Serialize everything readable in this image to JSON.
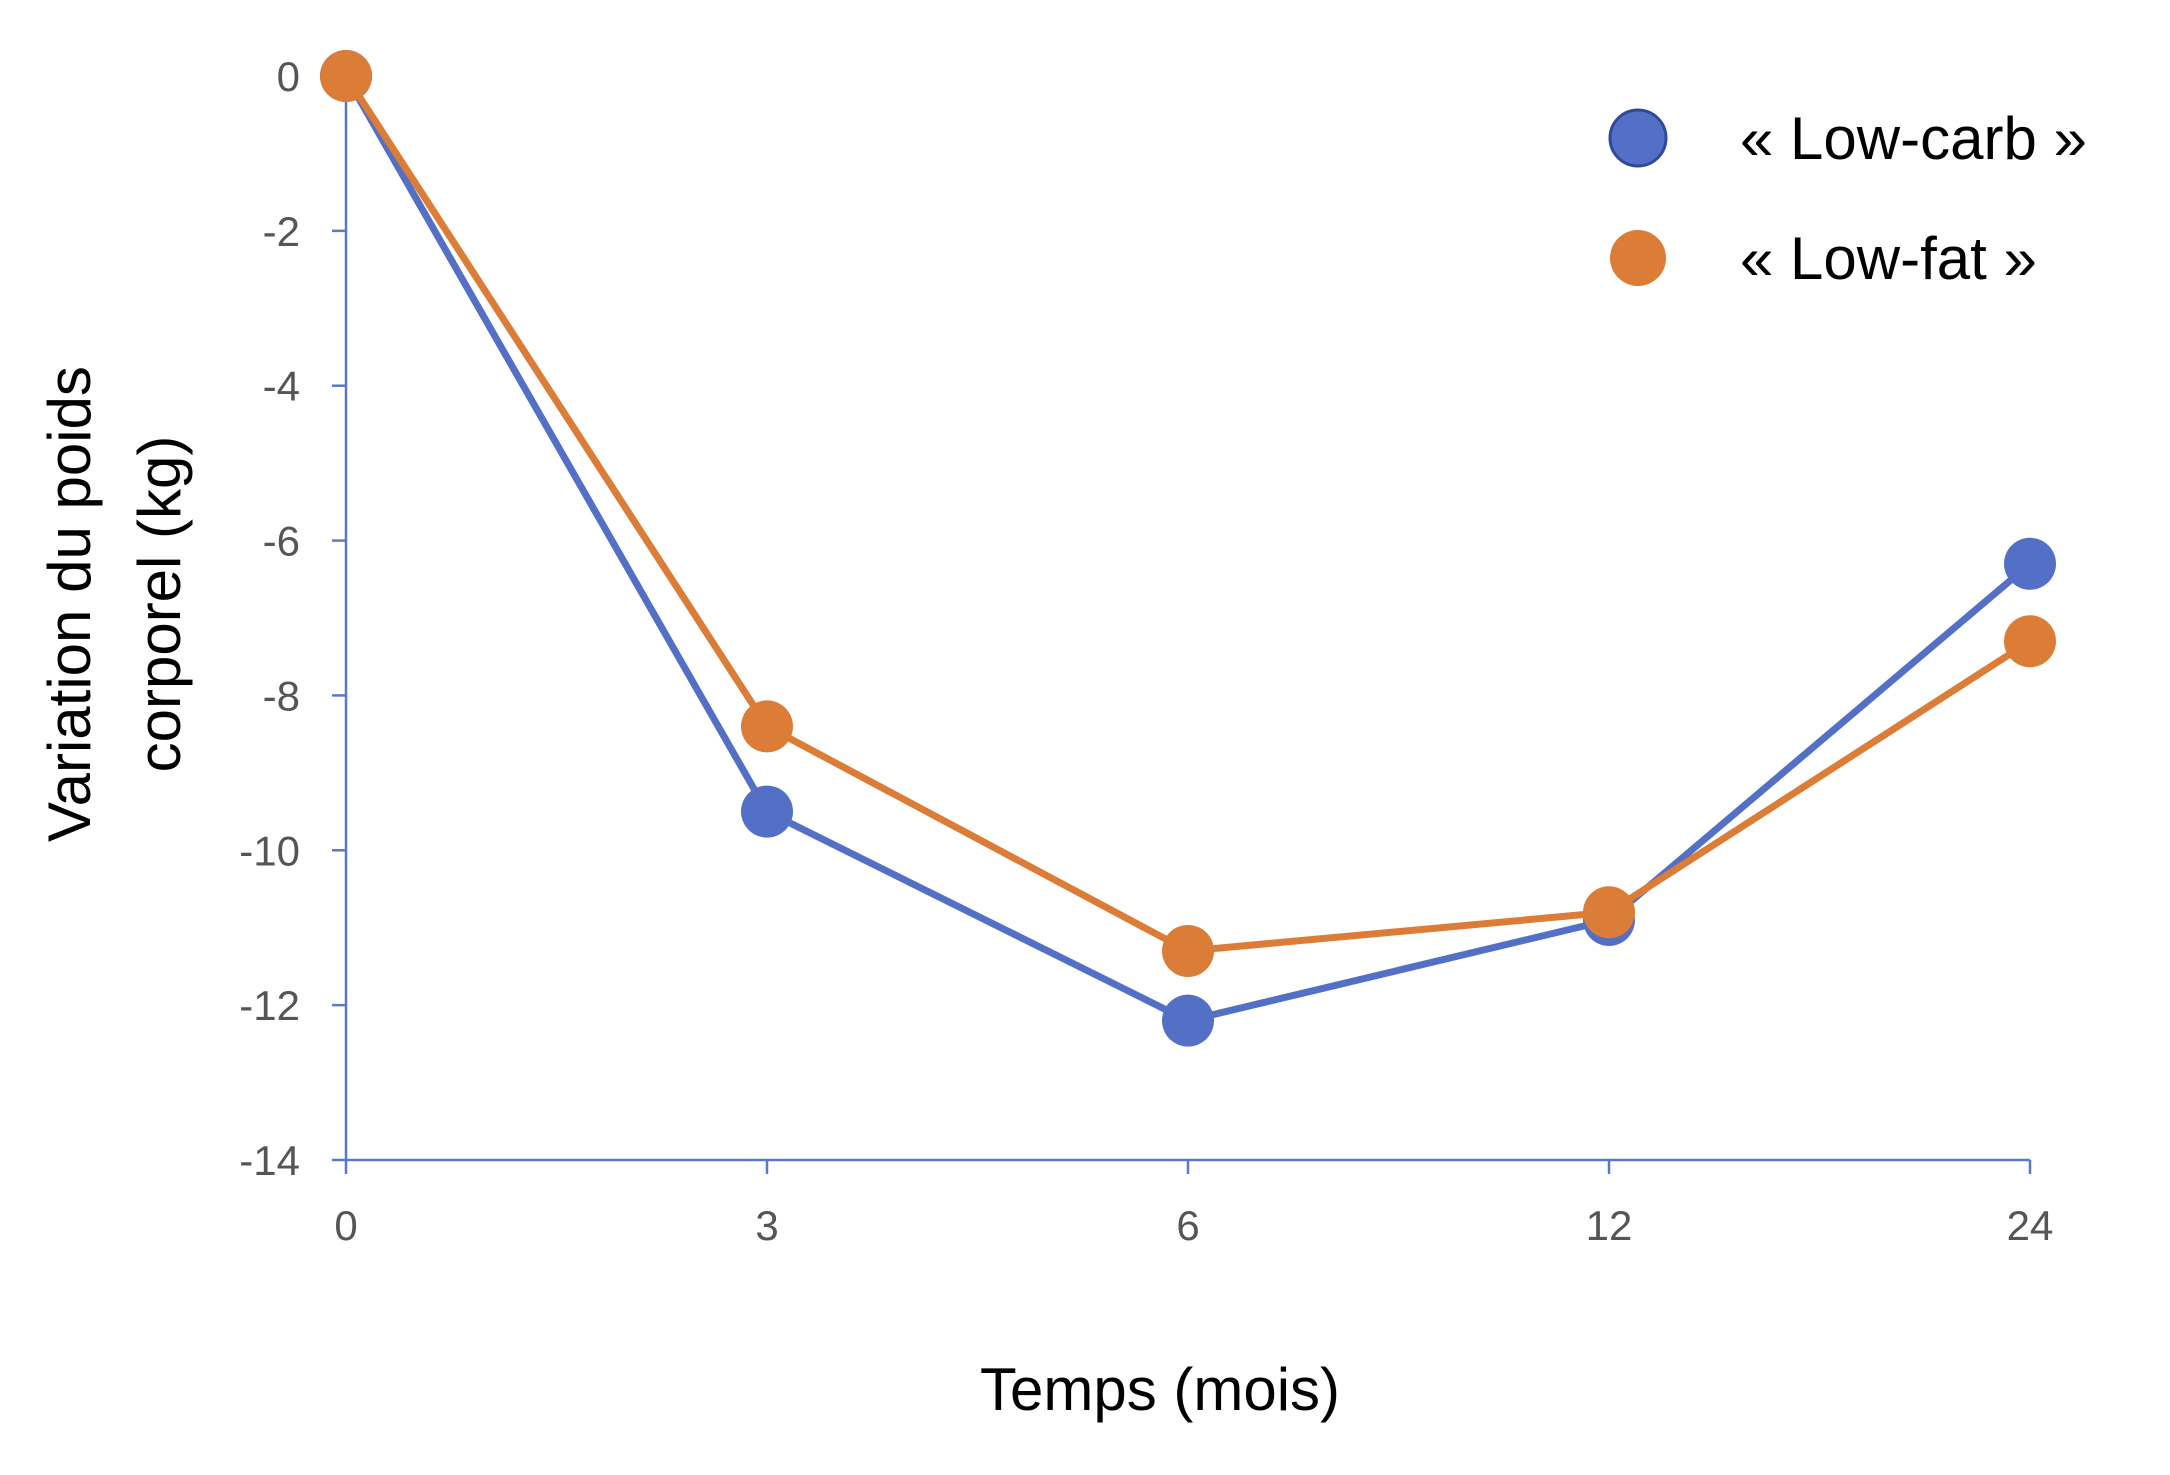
{
  "chart_data": {
    "type": "line",
    "title": "",
    "xlabel": "Temps (mois)",
    "ylabel_lines": [
      "Variation du poids",
      "corporel (kg)"
    ],
    "categories": [
      "0",
      "3",
      "6",
      "12",
      "24"
    ],
    "ylim": [
      -14,
      0
    ],
    "yticks": [
      0,
      -2,
      -4,
      -6,
      -8,
      -10,
      -12,
      -14
    ],
    "grid": false,
    "legend_position": "top-right",
    "axis_color": "#5b78c7",
    "series": [
      {
        "name": "« Low-carb »",
        "color": "#5470c6",
        "values": [
          0,
          -9.5,
          -12.2,
          -10.9,
          -6.3
        ]
      },
      {
        "name": "« Low-fat »",
        "color": "#db7c37",
        "values": [
          0,
          -8.4,
          -11.3,
          -10.8,
          -7.3
        ]
      }
    ]
  }
}
